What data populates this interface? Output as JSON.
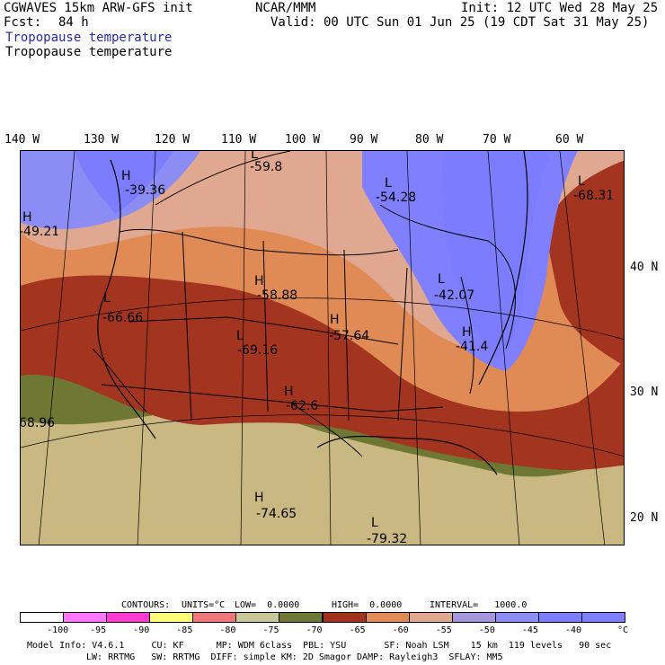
{
  "header": {
    "model": "CGWAVES 15km ARW-GFS init",
    "org": "NCAR/MMM",
    "init": "Init: 12 UTC Wed 28 May 25",
    "fcst_label": "Fcst:",
    "fcst_value": "84 h",
    "valid": "Valid: 00 UTC Sun 01 Jun 25 (19 CDT Sat 31 May 25)",
    "field_title_blue": "Tropopause temperature",
    "field_title_black": "Tropopause temperature"
  },
  "lon_labels": [
    "140 W",
    "130 W",
    "120 W",
    "110 W",
    "100 W",
    "90 W",
    "80 W",
    "70 W",
    "60 W"
  ],
  "lat_labels": [
    "40 N",
    "30 N",
    "20 N"
  ],
  "map_labels": [
    {
      "type": "H",
      "value": "-39.36"
    },
    {
      "type": "H",
      "value": "-49.21"
    },
    {
      "type": "L",
      "value": "-59.8"
    },
    {
      "type": "L",
      "value": "-54.28"
    },
    {
      "type": "L",
      "value": "-68.31"
    },
    {
      "type": "L",
      "value": "-66.66"
    },
    {
      "type": "H",
      "value": "-58.88"
    },
    {
      "type": "L",
      "value": "-69.16"
    },
    {
      "type": "H",
      "value": "-57.64"
    },
    {
      "type": "H",
      "value": "-62.6"
    },
    {
      "type": "L",
      "value": "-42.07"
    },
    {
      "type": "H",
      "value": "-41.4"
    },
    {
      "type": "",
      "value": "68.96"
    },
    {
      "type": "H",
      "value": "-74.65"
    },
    {
      "type": "L",
      "value": "-79.32"
    }
  ],
  "contour_line": {
    "contours": "CONTOURS:",
    "units": "UNITS=°C",
    "low": "LOW=  0.0000",
    "high": "HIGH=  0.0000",
    "interval": "INTERVAL=   1000.0"
  },
  "colorbar": {
    "colors": [
      "#ffffff",
      "#ff78ff",
      "#ff3cd2",
      "#ffff78",
      "#f07878",
      "#c8c898",
      "#6e7832",
      "#a0321e",
      "#ad3220",
      "#e08a56",
      "#e0a890",
      "#a696dc",
      "#8c8cf5",
      "#7c7cff",
      "#8080ff"
    ],
    "labels": [
      "-100",
      "-95",
      "-90",
      "-85",
      "-80",
      "-75",
      "-70",
      "-65",
      "-60",
      "-55",
      "-50",
      "-45",
      "-40",
      "°C"
    ]
  },
  "footer": {
    "line1": "Model Info: V4.6.1     CU: KF      MP: WDM 6class  PBL: YSU       SF: Noah LSM    15 km  119 levels   90 sec",
    "line2": "LW: RRTMG   SW: RRTMG  DIFF: simple KM: 2D Smagor DAMP: Rayleigh3  SFLAY: MM5"
  }
}
